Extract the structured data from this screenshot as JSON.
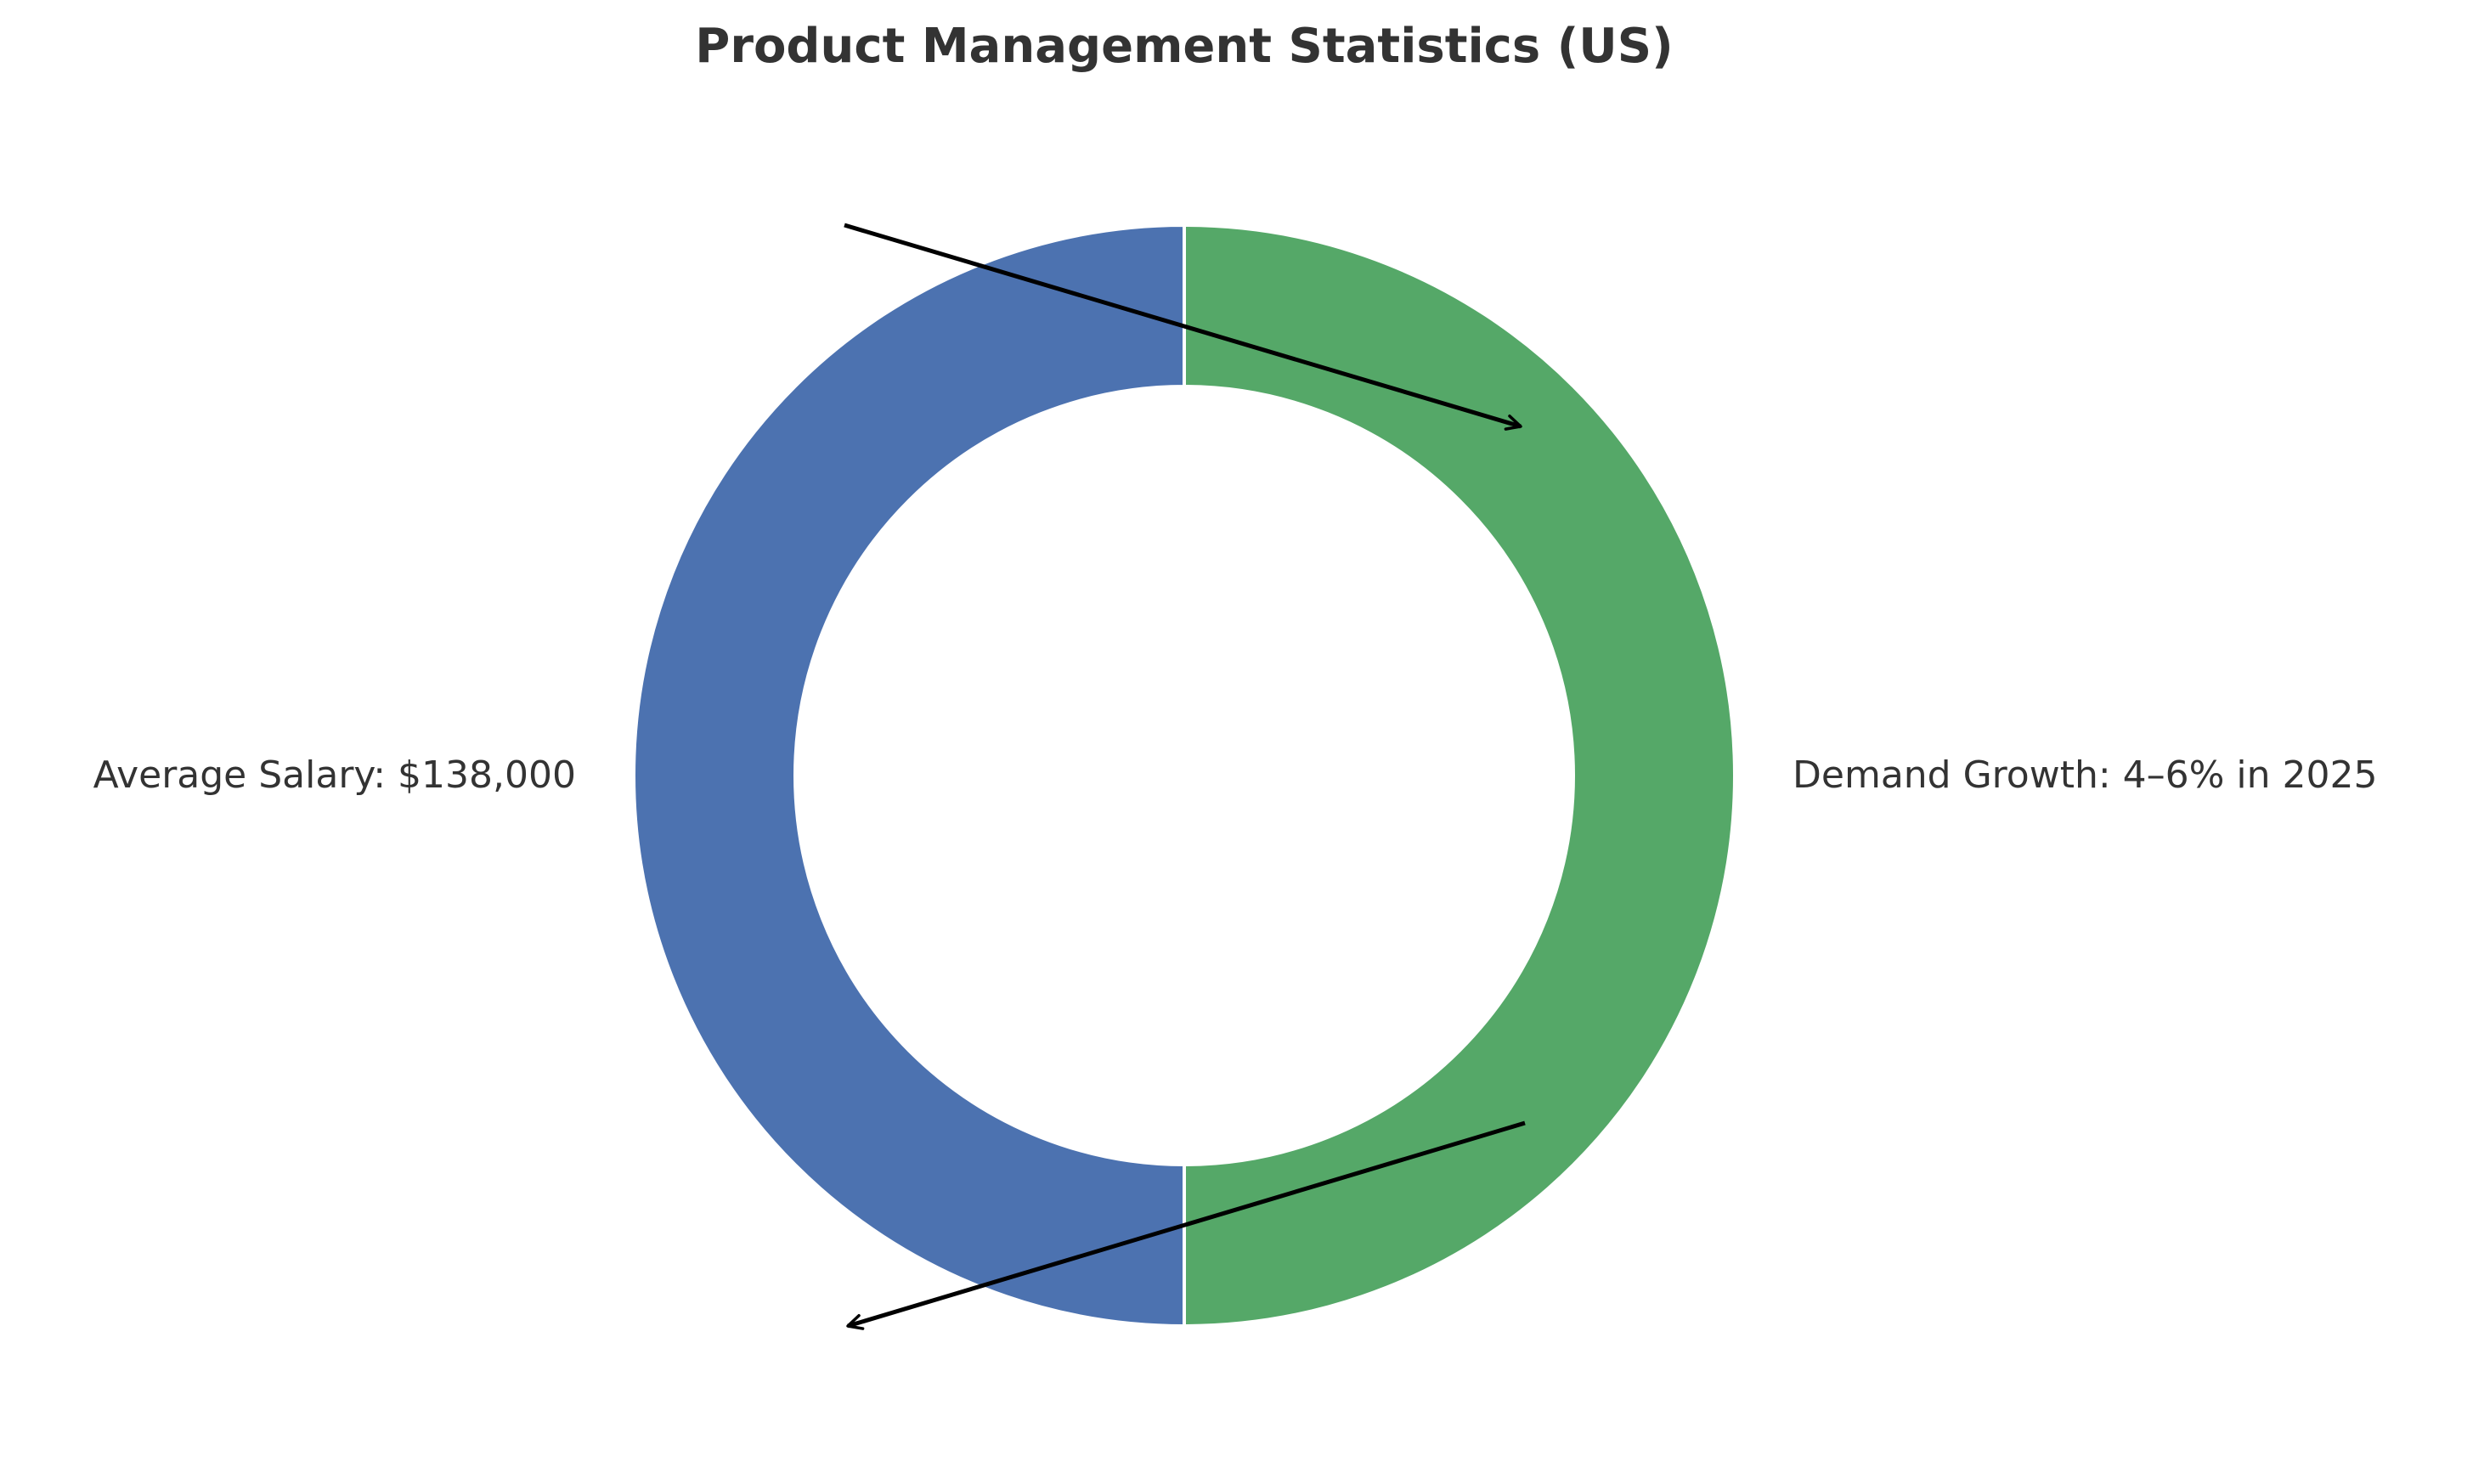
{
  "chart_data": {
    "type": "pie",
    "title": "Product Management Statistics (US)",
    "slices": [
      {
        "label": "Demand Growth: 4–6% in 2025",
        "value": 1,
        "color": "#55a868"
      },
      {
        "label": "Average Salary: $138,000",
        "value": 1,
        "color": "#4c72b0"
      }
    ],
    "style": "donut",
    "start_angle": "top",
    "direction": "clockwise",
    "legend": "none",
    "wedge_edge_color": "#ffffff",
    "annotation_color": "#000000"
  }
}
